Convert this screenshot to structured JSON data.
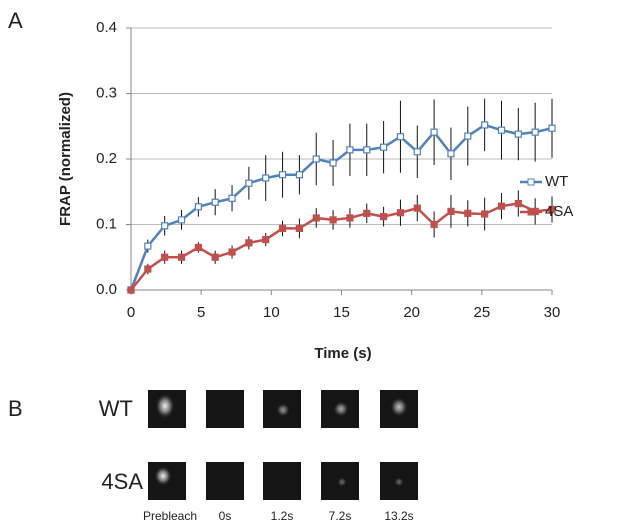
{
  "chart_data": {
    "type": "line",
    "panel_label": "A",
    "x_label": "Time (s)",
    "y_label": "FRAP (normalized)",
    "x": [
      0,
      1.2,
      2.4,
      3.6,
      4.8,
      6.0,
      7.2,
      8.4,
      9.6,
      10.8,
      12.0,
      13.2,
      14.4,
      15.6,
      16.8,
      18.0,
      19.2,
      20.4,
      21.6,
      22.8,
      24.0,
      25.2,
      26.4,
      27.6,
      28.8,
      30.0
    ],
    "series": [
      {
        "name": "WT",
        "color": "#4f81bd",
        "marker": "hollow-square",
        "values": [
          0,
          0.067,
          0.098,
          0.107,
          0.127,
          0.134,
          0.14,
          0.163,
          0.171,
          0.176,
          0.176,
          0.2,
          0.194,
          0.214,
          0.214,
          0.218,
          0.234,
          0.211,
          0.241,
          0.208,
          0.235,
          0.252,
          0.244,
          0.238,
          0.241,
          0.247
        ],
        "errors": [
          0,
          0.01,
          0.015,
          0.015,
          0.015,
          0.02,
          0.02,
          0.025,
          0.035,
          0.035,
          0.03,
          0.04,
          0.035,
          0.04,
          0.04,
          0.04,
          0.055,
          0.04,
          0.05,
          0.04,
          0.045,
          0.04,
          0.045,
          0.04,
          0.045,
          0.045
        ]
      },
      {
        "name": "4SA",
        "color": "#c0504d",
        "marker": "filled-square",
        "values": [
          0,
          0.032,
          0.05,
          0.05,
          0.065,
          0.05,
          0.058,
          0.072,
          0.077,
          0.094,
          0.094,
          0.11,
          0.107,
          0.11,
          0.117,
          0.112,
          0.118,
          0.125,
          0.1,
          0.12,
          0.117,
          0.116,
          0.128,
          0.132,
          0.12,
          0.123
        ],
        "errors": [
          0,
          0.008,
          0.01,
          0.01,
          0.008,
          0.01,
          0.01,
          0.01,
          0.01,
          0.012,
          0.015,
          0.015,
          0.015,
          0.015,
          0.015,
          0.015,
          0.02,
          0.02,
          0.02,
          0.025,
          0.02,
          0.025,
          0.02,
          0.02,
          0.02,
          0.02
        ]
      }
    ],
    "xlim": [
      0,
      30
    ],
    "xticks": [
      0,
      5,
      10,
      15,
      20,
      25,
      30
    ],
    "ylim": [
      0,
      0.4
    ],
    "yticks": [
      {
        "value": 0,
        "label": "0.0"
      },
      0.1,
      0.2,
      0.3,
      0.4
    ],
    "grid": true,
    "legend": "right"
  },
  "panel_b": {
    "panel_label": "B",
    "rows": [
      "WT",
      "4SA"
    ],
    "timepoints": [
      "Prebleach",
      "0s",
      "1.2s",
      "7.2s",
      "13.2s"
    ]
  }
}
